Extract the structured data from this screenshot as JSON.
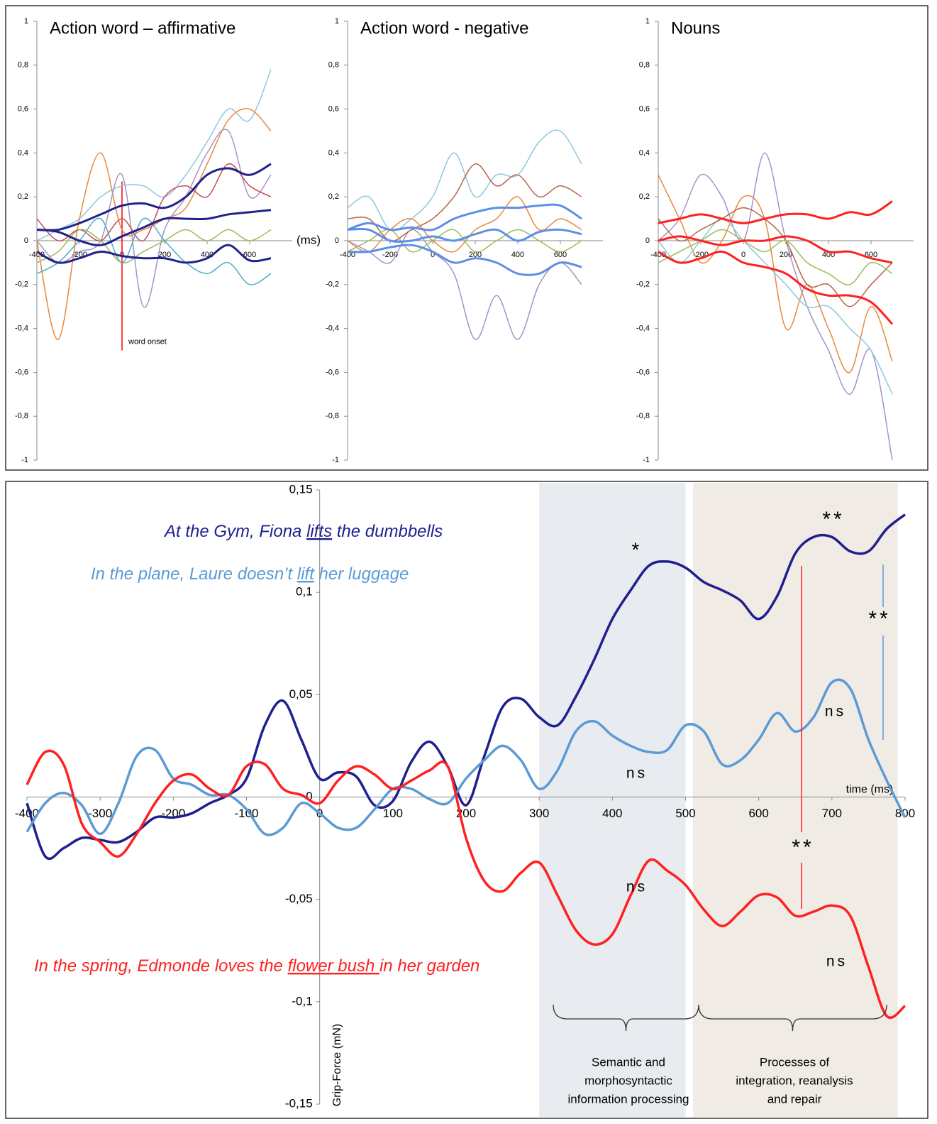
{
  "chart_data": [
    {
      "type": "line",
      "title": "Action word – affirmative",
      "x_unit_label": "(ms)",
      "onset_marker": {
        "x": 0,
        "from": 0.27,
        "to": -0.5,
        "label": "word onset",
        "color": "#ff0000"
      },
      "x": [
        -400,
        -300,
        -200,
        -100,
        0,
        100,
        200,
        300,
        400,
        500,
        600,
        700
      ],
      "xlim": [
        -400,
        800
      ],
      "ylim": [
        -1,
        1
      ],
      "xticks": [
        -400,
        -200,
        0,
        200,
        400,
        600
      ],
      "yticks": [
        1,
        {
          "value": 0.8,
          "label": "0,8"
        },
        {
          "value": 0.6,
          "label": "0,6"
        },
        {
          "value": 0.4,
          "label": "0,4"
        },
        {
          "value": 0.2,
          "label": "0,2"
        },
        0,
        {
          "value": -0.2,
          "label": "-0,2"
        },
        {
          "value": -0.4,
          "label": "-0,4"
        },
        {
          "value": -0.6,
          "label": "-0,6"
        },
        {
          "value": -0.8,
          "label": "-0,8"
        },
        -1
      ],
      "series": [
        {
          "color": "#8fc7dc",
          "line_width": 1.5,
          "values": [
            0.0,
            0.05,
            0.1,
            0.2,
            0.25,
            0.25,
            0.2,
            0.3,
            0.45,
            0.6,
            0.55,
            0.78
          ]
        },
        {
          "color": "#e8883a",
          "line_width": 1.5,
          "values": [
            0.0,
            -0.45,
            0.1,
            0.4,
            0.05,
            0.05,
            0.1,
            0.15,
            0.35,
            0.55,
            0.6,
            0.5
          ]
        },
        {
          "color": "#a593c8",
          "line_width": 1.5,
          "values": [
            0.0,
            -0.1,
            -0.05,
            0.0,
            0.3,
            -0.3,
            0.05,
            0.2,
            0.4,
            0.5,
            0.2,
            0.3
          ]
        },
        {
          "color": "#c0504d",
          "line_width": 1.5,
          "values": [
            0.1,
            0.0,
            0.05,
            0.0,
            0.1,
            0.0,
            0.2,
            0.25,
            0.2,
            0.35,
            0.25,
            0.2
          ]
        },
        {
          "color": "#9bbb59",
          "line_width": 1.5,
          "values": [
            -0.1,
            -0.05,
            0.05,
            0.0,
            -0.1,
            -0.05,
            0.0,
            0.05,
            0.0,
            0.05,
            0.0,
            0.05
          ]
        },
        {
          "color": "#4bacc6",
          "line_width": 1.5,
          "values": [
            -0.15,
            -0.1,
            0.0,
            0.1,
            -0.1,
            0.1,
            0.0,
            -0.1,
            -0.15,
            -0.1,
            -0.2,
            -0.15
          ]
        },
        {
          "color": "#22228c",
          "line_width": 3,
          "values": [
            0.05,
            0.05,
            0.08,
            0.12,
            0.16,
            0.17,
            0.15,
            0.2,
            0.3,
            0.33,
            0.3,
            0.35
          ]
        },
        {
          "color": "#22228c",
          "line_width": 3,
          "values": [
            0.05,
            0.04,
            0.0,
            -0.02,
            0.02,
            0.06,
            0.1,
            0.1,
            0.1,
            0.12,
            0.13,
            0.14
          ]
        },
        {
          "color": "#22228c",
          "line_width": 3,
          "values": [
            -0.05,
            -0.1,
            -0.08,
            -0.05,
            -0.07,
            -0.08,
            -0.08,
            -0.1,
            -0.08,
            -0.02,
            -0.09,
            -0.08
          ]
        }
      ]
    },
    {
      "type": "line",
      "title": "Action word - negative",
      "x": [
        -400,
        -300,
        -200,
        -100,
        0,
        100,
        200,
        300,
        400,
        500,
        600,
        700
      ],
      "xlim": [
        -400,
        800
      ],
      "ylim": [
        -1,
        1
      ],
      "xticks": [
        -400,
        -200,
        0,
        200,
        400,
        600
      ],
      "yticks": [
        1,
        {
          "value": 0.8,
          "label": "0,8"
        },
        {
          "value": 0.6,
          "label": "0,6"
        },
        {
          "value": 0.4,
          "label": "0,4"
        },
        {
          "value": 0.2,
          "label": "0,2"
        },
        0,
        {
          "value": -0.2,
          "label": "-0,2"
        },
        {
          "value": -0.4,
          "label": "-0,4"
        },
        {
          "value": -0.6,
          "label": "-0,6"
        },
        {
          "value": -0.8,
          "label": "-0,8"
        },
        -1
      ],
      "series": [
        {
          "color": "#8fc7dc",
          "line_width": 1.5,
          "values": [
            0.15,
            0.2,
            0.05,
            0.1,
            0.2,
            0.4,
            0.2,
            0.3,
            0.3,
            0.45,
            0.5,
            0.35
          ]
        },
        {
          "color": "#a593c8",
          "line_width": 1.5,
          "values": [
            0.0,
            -0.05,
            -0.1,
            0.05,
            -0.05,
            -0.15,
            -0.45,
            -0.25,
            -0.45,
            -0.2,
            -0.1,
            -0.2
          ]
        },
        {
          "color": "#b5654a",
          "line_width": 1.5,
          "values": [
            0.1,
            0.1,
            0.0,
            0.05,
            0.1,
            0.2,
            0.35,
            0.25,
            0.3,
            0.2,
            0.25,
            0.2
          ]
        },
        {
          "color": "#e8883a",
          "line_width": 1.5,
          "values": [
            0.0,
            -0.05,
            0.05,
            0.1,
            0.0,
            -0.05,
            0.05,
            0.1,
            0.2,
            0.05,
            0.1,
            0.05
          ]
        },
        {
          "color": "#9bbb59",
          "line_width": 1.5,
          "values": [
            -0.05,
            0.0,
            0.05,
            -0.05,
            0.0,
            0.05,
            -0.05,
            0.0,
            0.05,
            0.0,
            -0.05,
            0.0
          ]
        },
        {
          "color": "#5b8fe8",
          "line_width": 3,
          "values": [
            0.05,
            0.08,
            0.05,
            0.06,
            0.05,
            0.1,
            0.13,
            0.15,
            0.15,
            0.16,
            0.16,
            0.1
          ]
        },
        {
          "color": "#5b8fe8",
          "line_width": 3,
          "values": [
            0.05,
            0.05,
            0.0,
            0.0,
            0.02,
            0.0,
            0.03,
            0.05,
            0.0,
            0.04,
            0.05,
            0.03
          ]
        },
        {
          "color": "#5b8fe8",
          "line_width": 3,
          "values": [
            -0.05,
            -0.05,
            -0.03,
            -0.02,
            -0.05,
            -0.1,
            -0.08,
            -0.1,
            -0.15,
            -0.15,
            -0.1,
            -0.12
          ]
        }
      ]
    },
    {
      "type": "line",
      "title": "Nouns",
      "x": [
        -400,
        -300,
        -200,
        -100,
        0,
        100,
        200,
        300,
        400,
        500,
        600,
        700
      ],
      "xlim": [
        -400,
        800
      ],
      "ylim": [
        -1,
        1
      ],
      "xticks": [
        -400,
        -200,
        0,
        200,
        400,
        600
      ],
      "yticks": [
        1,
        {
          "value": 0.8,
          "label": "0,8"
        },
        {
          "value": 0.6,
          "label": "0,6"
        },
        {
          "value": 0.4,
          "label": "0,4"
        },
        {
          "value": 0.2,
          "label": "0,2"
        },
        0,
        {
          "value": -0.2,
          "label": "-0,2"
        },
        {
          "value": -0.4,
          "label": "-0,4"
        },
        {
          "value": -0.6,
          "label": "-0,6"
        },
        {
          "value": -0.8,
          "label": "-0,8"
        },
        -1
      ],
      "series": [
        {
          "color": "#e8883a",
          "line_width": 1.5,
          "values": [
            0.3,
            0.1,
            -0.1,
            0.0,
            0.2,
            0.1,
            -0.4,
            -0.2,
            -0.4,
            -0.6,
            -0.3,
            -0.55
          ]
        },
        {
          "color": "#a593c8",
          "line_width": 1.5,
          "values": [
            0.0,
            0.1,
            0.3,
            0.2,
            0.0,
            0.4,
            0.0,
            -0.3,
            -0.5,
            -0.7,
            -0.5,
            -1.0
          ]
        },
        {
          "color": "#8fc7dc",
          "line_width": 1.5,
          "values": [
            0.0,
            -0.1,
            0.0,
            0.1,
            0.0,
            -0.1,
            -0.2,
            -0.3,
            -0.3,
            -0.4,
            -0.5,
            -0.7
          ]
        },
        {
          "color": "#b5654a",
          "line_width": 1.5,
          "values": [
            0.1,
            0.0,
            0.05,
            0.1,
            0.15,
            0.1,
            0.0,
            -0.2,
            -0.2,
            -0.3,
            -0.2,
            -0.1
          ]
        },
        {
          "color": "#9bbb59",
          "line_width": 1.5,
          "values": [
            -0.1,
            -0.05,
            0.0,
            0.05,
            0.0,
            -0.05,
            0.0,
            -0.1,
            -0.15,
            -0.2,
            -0.1,
            -0.15
          ]
        },
        {
          "color": "#ff2020",
          "line_width": 3,
          "values": [
            0.08,
            0.1,
            0.12,
            0.1,
            0.08,
            0.1,
            0.12,
            0.12,
            0.1,
            0.13,
            0.12,
            0.18
          ]
        },
        {
          "color": "#ff2020",
          "line_width": 3,
          "values": [
            0.0,
            0.02,
            0.0,
            -0.02,
            0.0,
            0.0,
            0.02,
            0.0,
            -0.05,
            -0.05,
            -0.08,
            -0.1
          ]
        },
        {
          "color": "#ff2020",
          "line_width": 3,
          "values": [
            -0.05,
            -0.1,
            -0.08,
            -0.05,
            -0.1,
            -0.12,
            -0.15,
            -0.22,
            -0.25,
            -0.25,
            -0.28,
            -0.38
          ]
        }
      ]
    },
    {
      "type": "line",
      "x_label": "time (ms)",
      "y_label": "Grip-Force (mN)",
      "x": [
        -400,
        -375,
        -350,
        -325,
        -300,
        -275,
        -250,
        -225,
        -200,
        -175,
        -150,
        -125,
        -100,
        -75,
        -50,
        -25,
        0,
        25,
        50,
        75,
        100,
        125,
        150,
        175,
        200,
        225,
        250,
        275,
        300,
        325,
        350,
        375,
        400,
        425,
        450,
        475,
        500,
        525,
        550,
        575,
        600,
        625,
        650,
        675,
        700,
        725,
        750,
        775,
        800
      ],
      "xlim": [
        -400,
        800
      ],
      "ylim": [
        -0.15,
        0.15
      ],
      "xticks": [
        -400,
        -300,
        -200,
        -100,
        0,
        100,
        200,
        300,
        400,
        500,
        600,
        700,
        800
      ],
      "yticks": [
        {
          "value": 0.15,
          "label": "0,15"
        },
        {
          "value": 0.1,
          "label": "0,1"
        },
        {
          "value": 0.05,
          "label": "0,05"
        },
        0,
        {
          "value": -0.05,
          "label": "-0,05"
        },
        {
          "value": -0.1,
          "label": "-0,1"
        },
        {
          "value": -0.15,
          "label": "-0,15"
        }
      ],
      "shaded_regions": [
        {
          "from": 300,
          "to": 500,
          "color": "#e8ebef"
        },
        {
          "from": 510,
          "to": 790,
          "color": "#f1ebe6"
        }
      ],
      "region_labels": [
        [
          "Semantic and",
          "morphosyntactic",
          "information processing"
        ],
        [
          "Processes of",
          "integration, reanalysis",
          "and repair"
        ]
      ],
      "series": [
        {
          "color": "#1f1f8f",
          "line_width": 3.5,
          "values": [
            -0.003,
            -0.029,
            -0.025,
            -0.02,
            -0.021,
            -0.022,
            -0.017,
            -0.01,
            -0.01,
            -0.008,
            -0.003,
            0.001,
            0.009,
            0.035,
            0.047,
            0.028,
            0.009,
            0.012,
            0.01,
            -0.004,
            -0.002,
            0.017,
            0.027,
            0.015,
            -0.004,
            0.02,
            0.044,
            0.048,
            0.039,
            0.035,
            0.049,
            0.067,
            0.087,
            0.101,
            0.113,
            0.115,
            0.112,
            0.105,
            0.101,
            0.096,
            0.087,
            0.098,
            0.119,
            0.127,
            0.127,
            0.12,
            0.12,
            0.131,
            0.138
          ]
        },
        {
          "color": "#5b9bd5",
          "line_width": 3.5,
          "values": [
            -0.017,
            -0.003,
            0.002,
            -0.004,
            -0.018,
            -0.003,
            0.02,
            0.023,
            0.009,
            0.006,
            0.001,
            0.001,
            -0.006,
            -0.018,
            -0.015,
            -0.003,
            -0.008,
            -0.015,
            -0.015,
            -0.006,
            0.004,
            0.004,
            -0.001,
            -0.003,
            0.009,
            0.018,
            0.025,
            0.018,
            0.004,
            0.013,
            0.032,
            0.037,
            0.03,
            0.025,
            0.022,
            0.023,
            0.035,
            0.032,
            0.016,
            0.018,
            0.028,
            0.041,
            0.032,
            0.039,
            0.056,
            0.053,
            0.028,
            0.008,
            -0.01
          ]
        },
        {
          "color": "#ff2020",
          "line_width": 3.5,
          "values": [
            0.006,
            0.022,
            0.016,
            -0.013,
            -0.022,
            -0.029,
            -0.018,
            -0.003,
            0.008,
            0.011,
            0.004,
            0.001,
            0.015,
            0.016,
            0.004,
            0.001,
            -0.003,
            0.008,
            0.015,
            0.011,
            0.004,
            0.008,
            0.013,
            0.015,
            -0.02,
            -0.041,
            -0.046,
            -0.037,
            -0.032,
            -0.048,
            -0.065,
            -0.072,
            -0.067,
            -0.048,
            -0.031,
            -0.036,
            -0.043,
            -0.055,
            -0.063,
            -0.056,
            -0.048,
            -0.049,
            -0.058,
            -0.056,
            -0.053,
            -0.058,
            -0.083,
            -0.107,
            -0.102
          ]
        }
      ],
      "sentences": [
        {
          "color": "#1f1f8f",
          "parts": [
            {
              "text": "At the Gym, Fiona "
            },
            {
              "text": "lifts",
              "underline": true
            },
            {
              "text": " the dumbbells"
            }
          ]
        },
        {
          "color": "#5b9bd5",
          "parts": [
            {
              "text": "In the plane, Laure doesn’t "
            },
            {
              "text": "lift",
              "underline": true
            },
            {
              "text": " her luggage"
            }
          ]
        },
        {
          "color": "#ff2020",
          "parts": [
            {
              "text": "In the spring, Edmonde loves the "
            },
            {
              "text": "flower bush ",
              "underline": true
            },
            {
              "text": "in her garden"
            }
          ]
        }
      ],
      "annotations": [
        {
          "text": "*",
          "color": "#1f1f8f"
        },
        {
          "text": "**",
          "color": "#1f1f8f"
        },
        {
          "text": "**",
          "color": "#5b9bd5"
        },
        {
          "text": "**",
          "color": "#ff2020"
        },
        {
          "text": "ns",
          "color": "#5b9bd5"
        },
        {
          "text": "ns",
          "color": "#5b9bd5"
        },
        {
          "text": "ns",
          "color": "#ff2020"
        },
        {
          "text": "ns",
          "color": "#ff2020"
        }
      ]
    }
  ]
}
